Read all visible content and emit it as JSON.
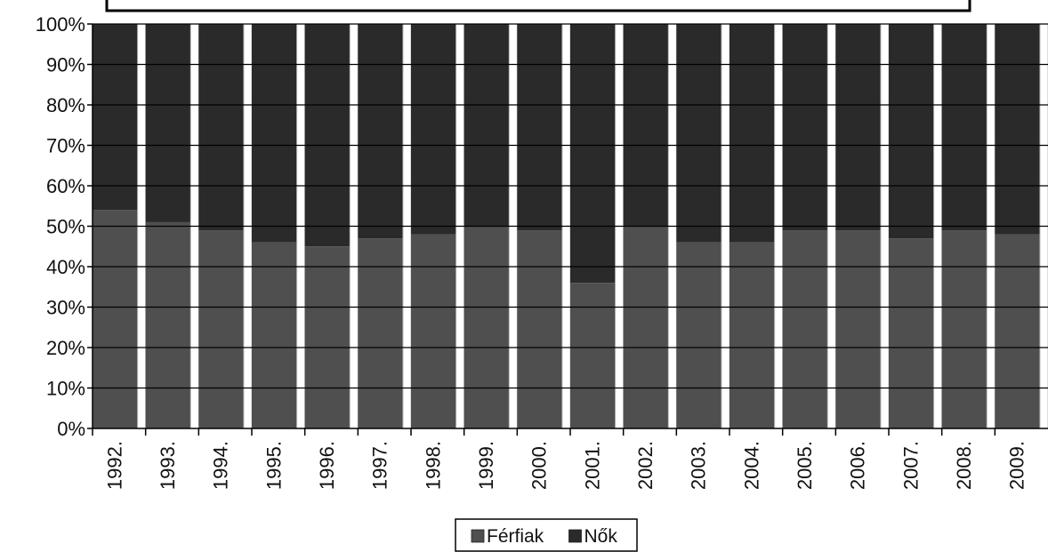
{
  "chart_data": {
    "type": "bar",
    "stacked": "percent",
    "categories": [
      "1992.",
      "1993.",
      "1994.",
      "1995.",
      "1996.",
      "1997.",
      "1998.",
      "1999.",
      "2000.",
      "2001.",
      "2002.",
      "2003.",
      "2004.",
      "2005.",
      "2006.",
      "2007.",
      "2008.",
      "2009."
    ],
    "series": [
      {
        "name": "Férfiak",
        "values": [
          54,
          51,
          49,
          46,
          45,
          47,
          48,
          50,
          49,
          36,
          50,
          46,
          46,
          49,
          49,
          47,
          49,
          48
        ],
        "color": "#4f4f4f"
      },
      {
        "name": "Nők",
        "values": [
          46,
          49,
          51,
          54,
          55,
          53,
          52,
          50,
          51,
          64,
          50,
          54,
          54,
          51,
          51,
          53,
          51,
          52
        ],
        "color": "#2a2a2a"
      }
    ],
    "y_ticks": [
      "0%",
      "10%",
      "20%",
      "30%",
      "40%",
      "50%",
      "60%",
      "70%",
      "80%",
      "90%",
      "100%"
    ],
    "ylim": [
      0,
      100
    ],
    "title": "",
    "xlabel": "",
    "ylabel": "",
    "grid": true,
    "legend_position": "bottom"
  }
}
